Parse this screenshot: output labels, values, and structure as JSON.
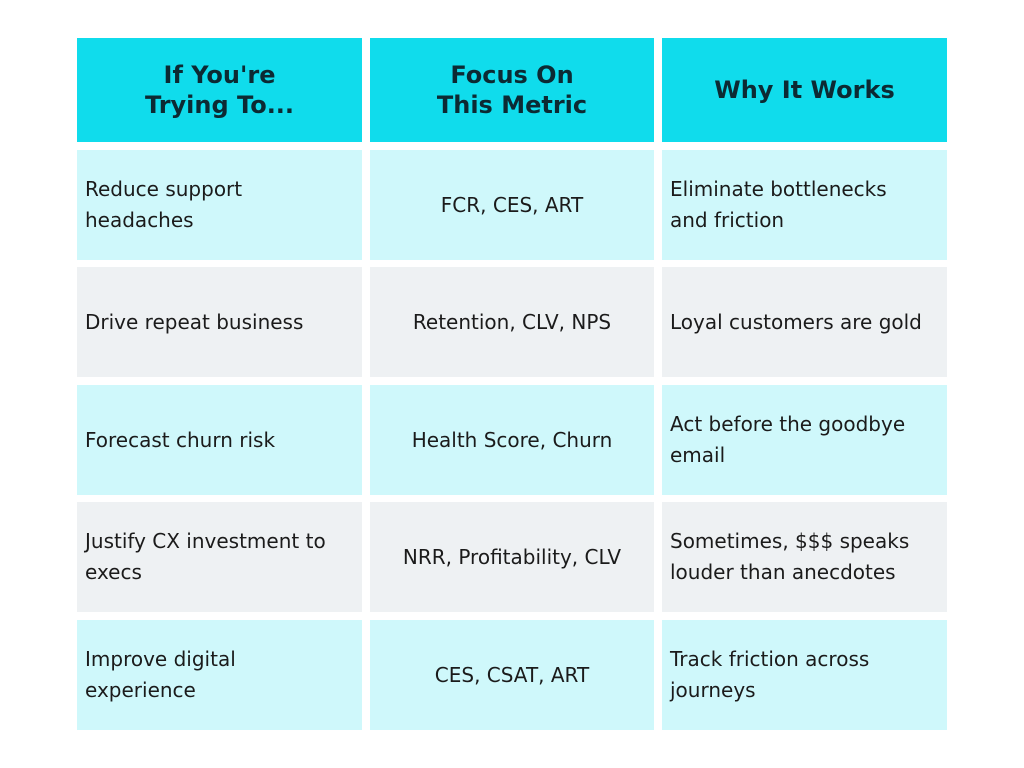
{
  "table": {
    "header": [
      [
        "If You're",
        "Trying To..."
      ],
      [
        "Focus On",
        "This Metric"
      ],
      [
        "Why It Works"
      ]
    ],
    "rows": [
      [
        [
          "Reduce support",
          "headaches"
        ],
        [
          "FCR, CES, ART"
        ],
        [
          "Eliminate bottlenecks",
          "and friction"
        ]
      ],
      [
        [
          "Drive repeat business"
        ],
        [
          "Retention, CLV, NPS"
        ],
        [
          "Loyal customers are gold"
        ]
      ],
      [
        [
          "Forecast churn risk"
        ],
        [
          "Health Score, Churn"
        ],
        [
          "Act before the goodbye",
          "email"
        ]
      ],
      [
        [
          "Justify CX investment to",
          "execs"
        ],
        [
          "NRR, Profitability, CLV"
        ],
        [
          "Sometimes, $$$ speaks",
          "louder than anecdotes"
        ]
      ],
      [
        [
          "Improve digital",
          "experience"
        ],
        [
          "CES, CSAT, ART"
        ],
        [
          "Track friction across",
          "journeys"
        ]
      ]
    ]
  }
}
